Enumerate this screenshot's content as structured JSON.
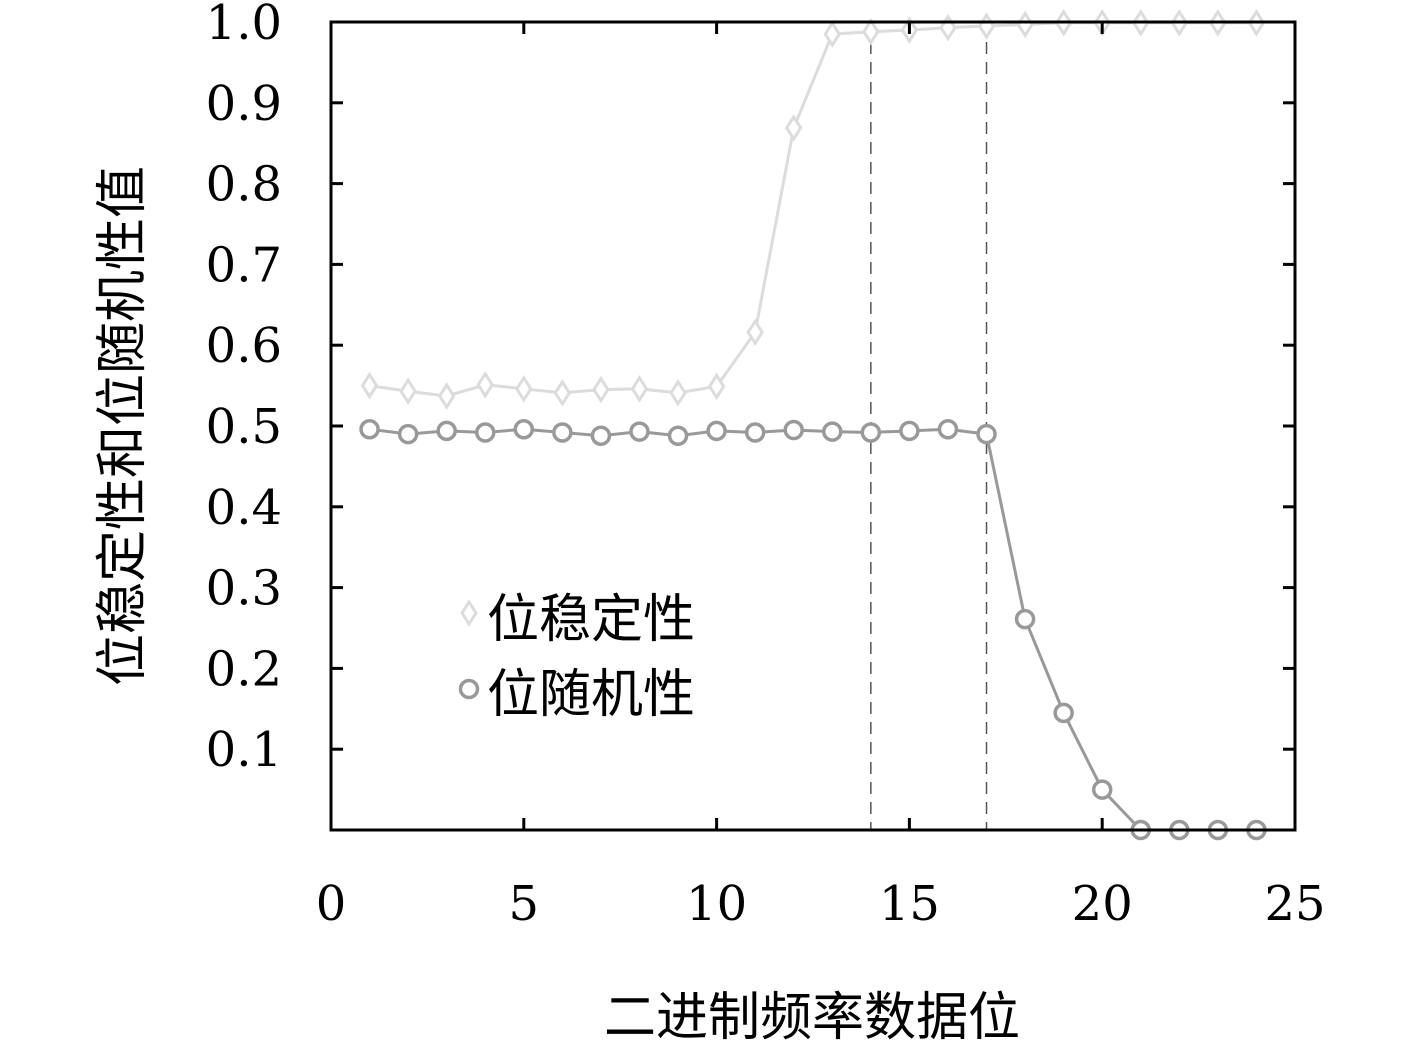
{
  "chart_data": {
    "type": "line",
    "xlabel": "二进制频率数据位",
    "ylabel": "位稳定性和位随机性值",
    "xlim": [
      0,
      25
    ],
    "ylim": [
      0,
      1.0
    ],
    "x_ticks": [
      0,
      5,
      10,
      15,
      20,
      25
    ],
    "x_tick_labels": [
      "0",
      "5",
      "10",
      "15",
      "20",
      "25"
    ],
    "y_ticks": [
      0.1,
      0.2,
      0.3,
      0.4,
      0.5,
      0.6,
      0.7,
      0.8,
      0.9,
      1.0
    ],
    "y_tick_labels": [
      "0.1",
      "0.2",
      "0.3",
      "0.4",
      "0.5",
      "0.6",
      "0.7",
      "0.8",
      "0.9",
      "1.0"
    ],
    "grid": false,
    "legend_position": "lower-left",
    "reference_lines_x": [
      14,
      17
    ],
    "series": [
      {
        "name": "位稳定性",
        "marker": "diamond",
        "color": "#dcdcdc",
        "x": [
          1,
          2,
          3,
          4,
          5,
          6,
          7,
          8,
          9,
          10,
          11,
          12,
          13,
          14,
          15,
          16,
          17,
          18,
          19,
          20,
          21,
          22,
          23,
          24
        ],
        "values": [
          0.55,
          0.543,
          0.537,
          0.551,
          0.546,
          0.541,
          0.545,
          0.546,
          0.541,
          0.549,
          0.616,
          0.869,
          0.985,
          0.988,
          0.99,
          0.993,
          0.995,
          0.997,
          0.999,
          0.999,
          0.999,
          0.999,
          0.999,
          0.999
        ]
      },
      {
        "name": "位随机性",
        "marker": "circle",
        "color": "#999999",
        "x": [
          1,
          2,
          3,
          4,
          5,
          6,
          7,
          8,
          9,
          10,
          11,
          12,
          13,
          14,
          15,
          16,
          17,
          18,
          19,
          20,
          21,
          22,
          23,
          24
        ],
        "values": [
          0.496,
          0.49,
          0.494,
          0.492,
          0.496,
          0.492,
          0.488,
          0.493,
          0.488,
          0.494,
          0.492,
          0.495,
          0.493,
          0.492,
          0.494,
          0.496,
          0.49,
          0.261,
          0.145,
          0.05,
          0.0,
          0.0,
          0.0,
          0.0
        ]
      }
    ]
  }
}
